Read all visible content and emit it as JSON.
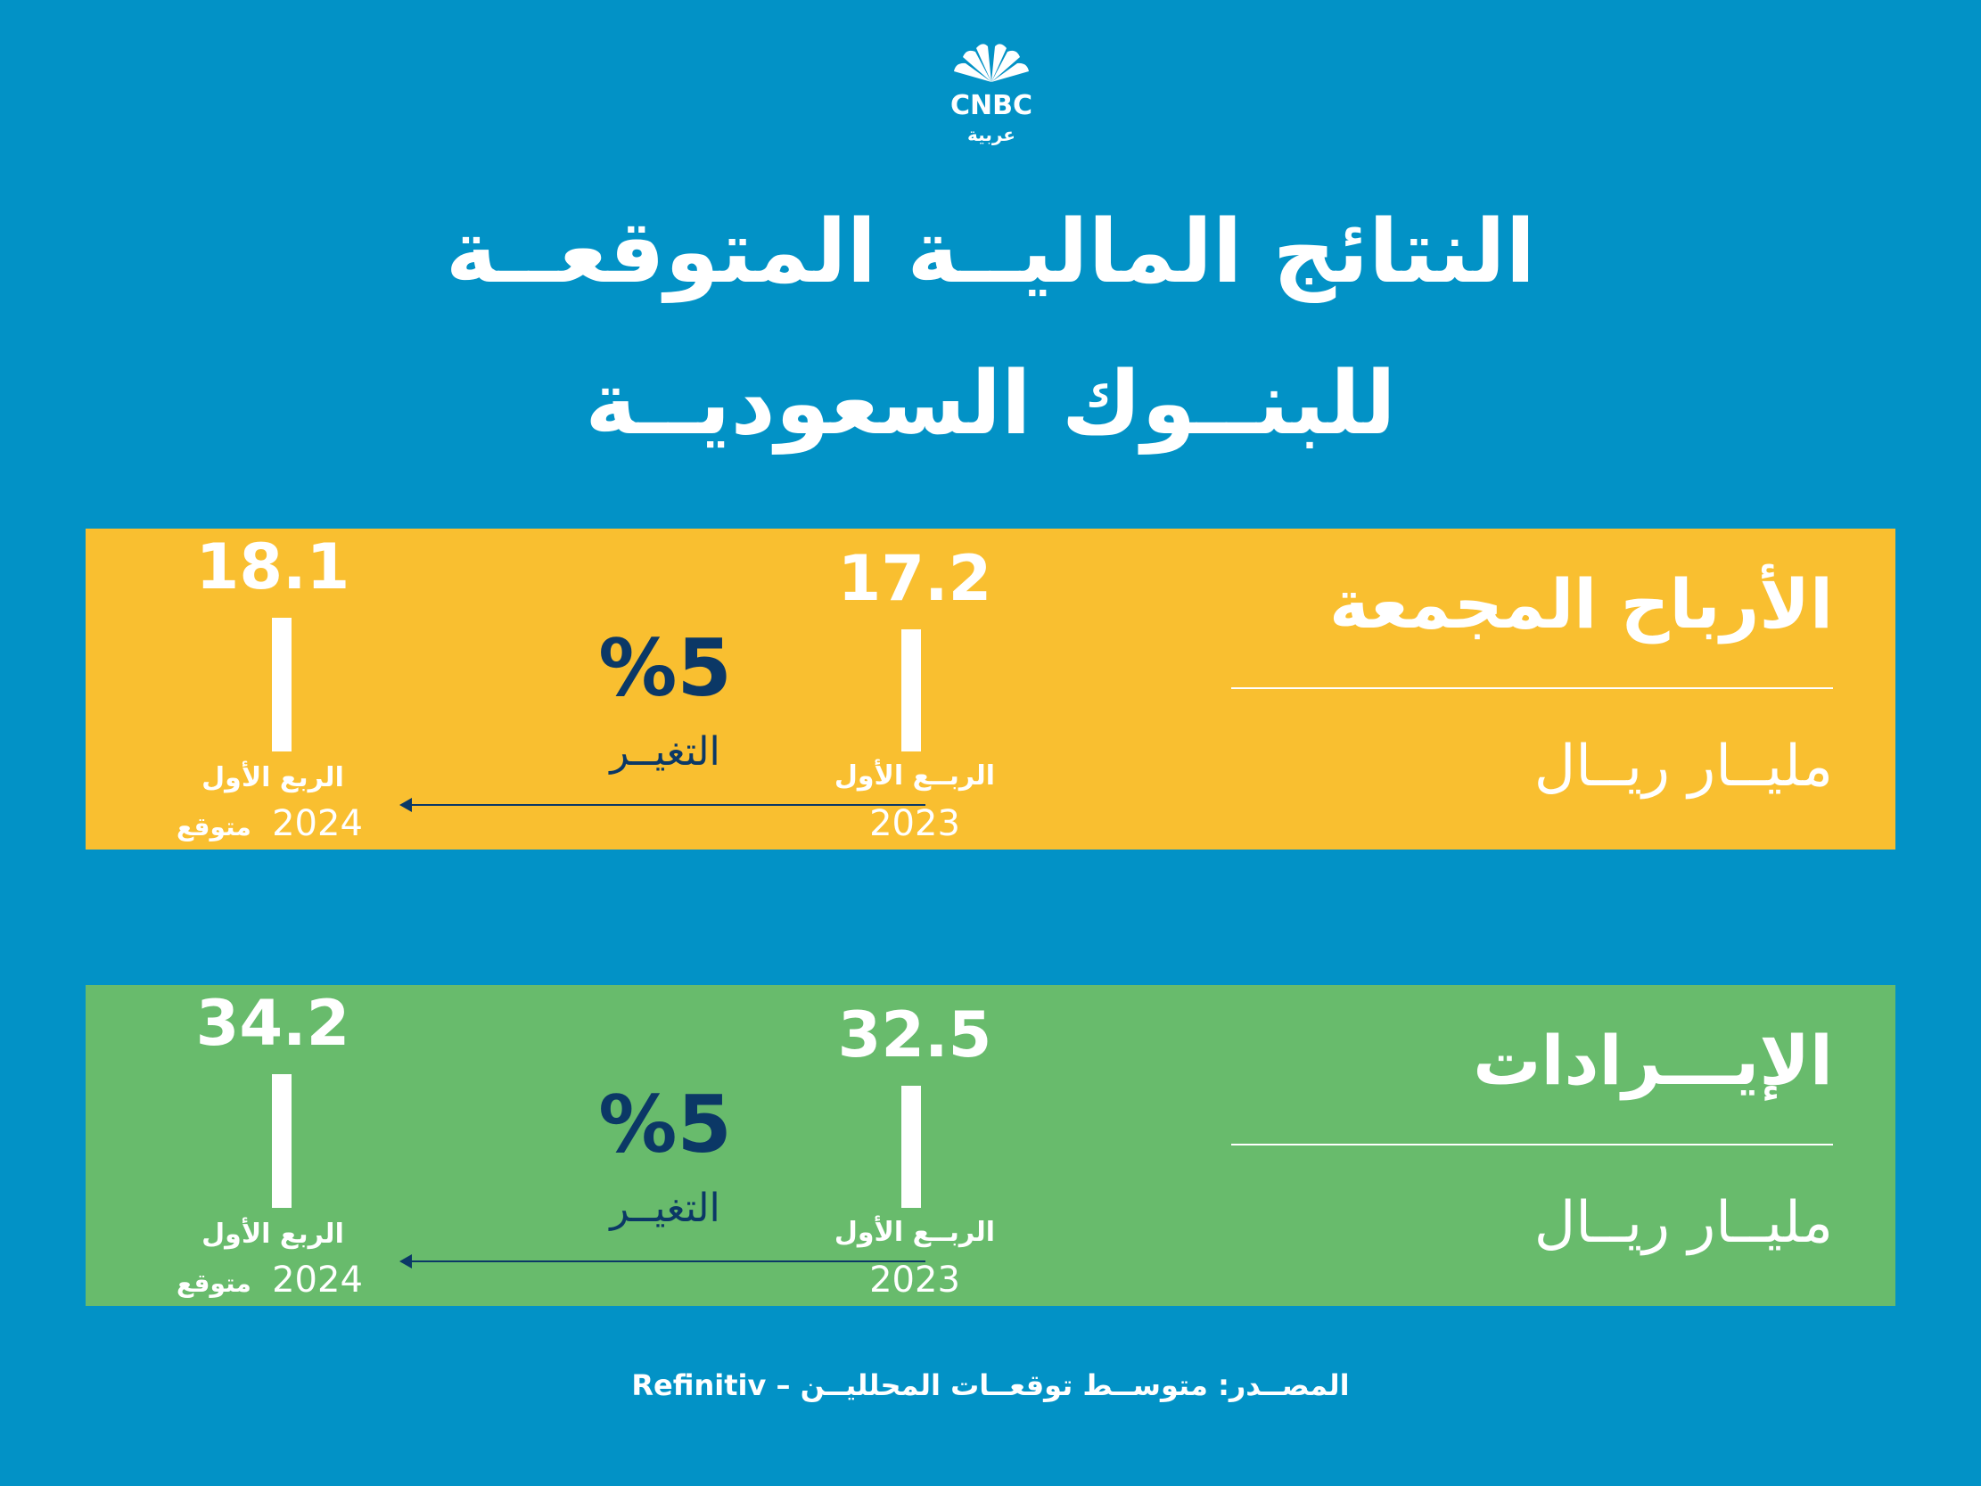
{
  "brand": {
    "logo_text": "CNBC",
    "logo_subtext": "عربية"
  },
  "title": {
    "line1": "النتائج الماليــة المتوقعــة",
    "line2": "للبنــوك السعوديــة"
  },
  "panels": [
    {
      "name": "الأرباح المجمعة",
      "unit": "مليــار ريــال",
      "change_value": "%5",
      "change_label": "التغيــر",
      "q2023_label": "الربــع الأول",
      "q2023_year": "2023",
      "q2023_value": "17.2",
      "q2024_label": "الربع الأول",
      "q2024_year": "2024",
      "q2024_forecast": "متوقع",
      "q2024_value": "18.1",
      "color": "#f9bf30"
    },
    {
      "name": "الإيـــرادات",
      "unit": "مليــار ريــال",
      "change_value": "%5",
      "change_label": "التغيــر",
      "q2023_label": "الربــع الأول",
      "q2023_year": "2023",
      "q2023_value": "32.5",
      "q2024_label": "الربع الأول",
      "q2024_year": "2024",
      "q2024_forecast": "متوقع",
      "q2024_value": "34.2",
      "color": "#68bb6c"
    }
  ],
  "source": "المصــدر: متوســط توقعــات المحلليــن – Refinitiv",
  "colors": {
    "background": "#0292c6",
    "accent_text": "#0b3866"
  },
  "chart_data": [
    {
      "type": "bar",
      "title": "الأرباح المجمعة",
      "ylabel": "مليــار ريــال",
      "categories": [
        "الربــع الأول 2023",
        "الربع الأول 2024 متوقع"
      ],
      "values": [
        17.2,
        18.1
      ],
      "change": "%5"
    },
    {
      "type": "bar",
      "title": "الإيـــرادات",
      "ylabel": "مليــار ريــال",
      "categories": [
        "الربــع الأول 2023",
        "الربع الأول 2024 متوقع"
      ],
      "values": [
        32.5,
        34.2
      ],
      "change": "%5"
    }
  ]
}
